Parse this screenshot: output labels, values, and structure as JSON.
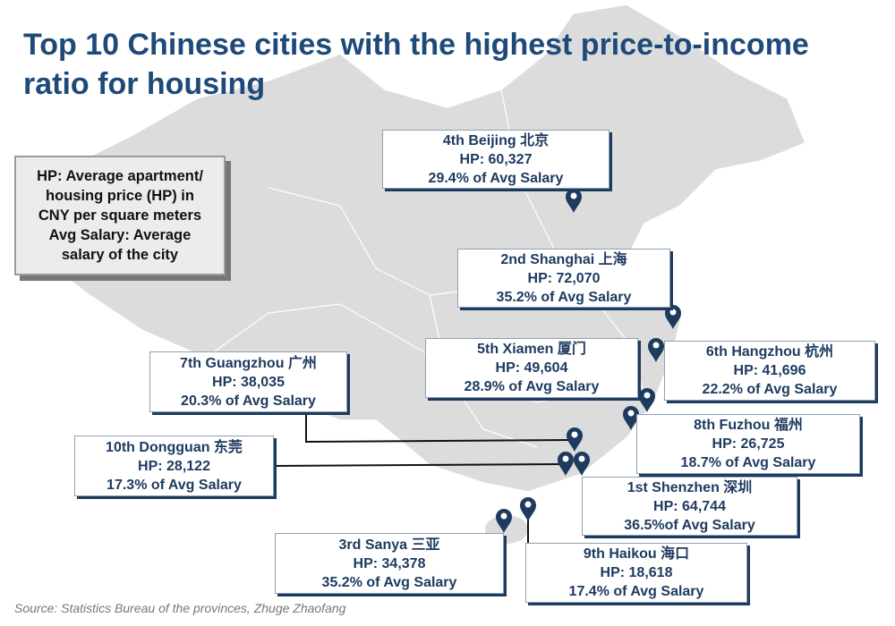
{
  "title": "Top 10 Chinese cities with the highest price-to-income ratio for housing",
  "legend_text": [
    "HP: Average apartment/",
    "housing price (HP) in",
    "CNY per square meters",
    "Avg Salary: Average",
    "salary of the city"
  ],
  "colors": {
    "title": "#1e4a7a",
    "box_text": "#1d3a5f",
    "pin": "#1d3a5f",
    "map_fill": "#dcdcdc"
  },
  "pin_icon": "map-marker-icon",
  "cities": [
    {
      "rank_name": "4th Beijing 北京",
      "hp": "HP: 60,327",
      "ratio": "29.4% of Avg Salary"
    },
    {
      "rank_name": "2nd Shanghai 上海",
      "hp": "HP: 72,070",
      "ratio": "35.2% of Avg Salary"
    },
    {
      "rank_name": "5th Xiamen 厦门",
      "hp": "HP: 49,604",
      "ratio": "28.9% of Avg Salary"
    },
    {
      "rank_name": "6th Hangzhou 杭州",
      "hp": "HP: 41,696",
      "ratio": "22.2% of Avg Salary"
    },
    {
      "rank_name": "7th Guangzhou 广州",
      "hp": "HP: 38,035",
      "ratio": "20.3% of Avg Salary"
    },
    {
      "rank_name": "8th Fuzhou 福州",
      "hp": "HP: 26,725",
      "ratio": "18.7% of Avg Salary"
    },
    {
      "rank_name": "10th Dongguan 东莞",
      "hp": "HP: 28,122",
      "ratio": "17.3% of Avg Salary"
    },
    {
      "rank_name": "1st Shenzhen 深圳",
      "hp": "HP:  64,744",
      "ratio": "36.5%of Avg Salary"
    },
    {
      "rank_name": "3rd Sanya 三亚",
      "hp": "HP: 34,378",
      "ratio": "35.2% of Avg Salary"
    },
    {
      "rank_name": "9th Haikou 海口",
      "hp": "HP: 18,618",
      "ratio": "17.4% of Avg Salary"
    }
  ],
  "source": "Source: Statistics Bureau of the provinces, Zhuge Zhaofang"
}
